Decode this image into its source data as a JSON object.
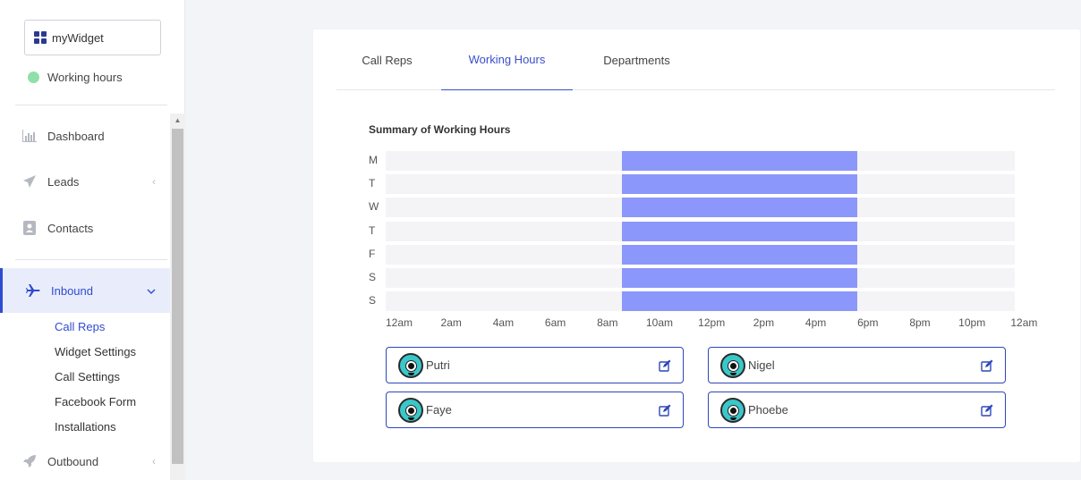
{
  "widget": {
    "name": "myWidget",
    "icon": "grid-icon"
  },
  "status": {
    "label": "Working hours",
    "color": "#8fe0a8"
  },
  "nav": {
    "dashboard": {
      "label": "Dashboard",
      "icon": "bar-chart-icon"
    },
    "leads": {
      "label": "Leads",
      "icon": "paper-plane-icon"
    },
    "contacts": {
      "label": "Contacts",
      "icon": "contact-card-icon"
    },
    "inbound": {
      "label": "Inbound",
      "icon": "airplane-icon"
    },
    "outbound": {
      "label": "Outbound",
      "icon": "rocket-icon"
    }
  },
  "inbound_sub": [
    "Call Reps",
    "Widget Settings",
    "Call Settings",
    "Facebook Form",
    "Installations"
  ],
  "tabs": [
    "Call Reps",
    "Working Hours",
    "Departments"
  ],
  "active_tab": "Working Hours",
  "summary": {
    "title": "Summary of Working Hours",
    "days": [
      "M",
      "T",
      "W",
      "T",
      "F",
      "S",
      "S"
    ],
    "hour_labels": [
      "12am",
      "2am",
      "4am",
      "6am",
      "8am",
      "10am",
      "12pm",
      "2pm",
      "4pm",
      "6pm",
      "8pm",
      "10pm",
      "12am"
    ],
    "work_start_hour": 9,
    "work_end_hour": 18,
    "bar_color": "#8c97fb"
  },
  "reps": [
    {
      "name": "Putri"
    },
    {
      "name": "Nigel"
    },
    {
      "name": "Faye"
    },
    {
      "name": "Phoebe"
    }
  ],
  "colors": {
    "accent": "#2f4bd0",
    "card_border": "#2f47b8"
  }
}
